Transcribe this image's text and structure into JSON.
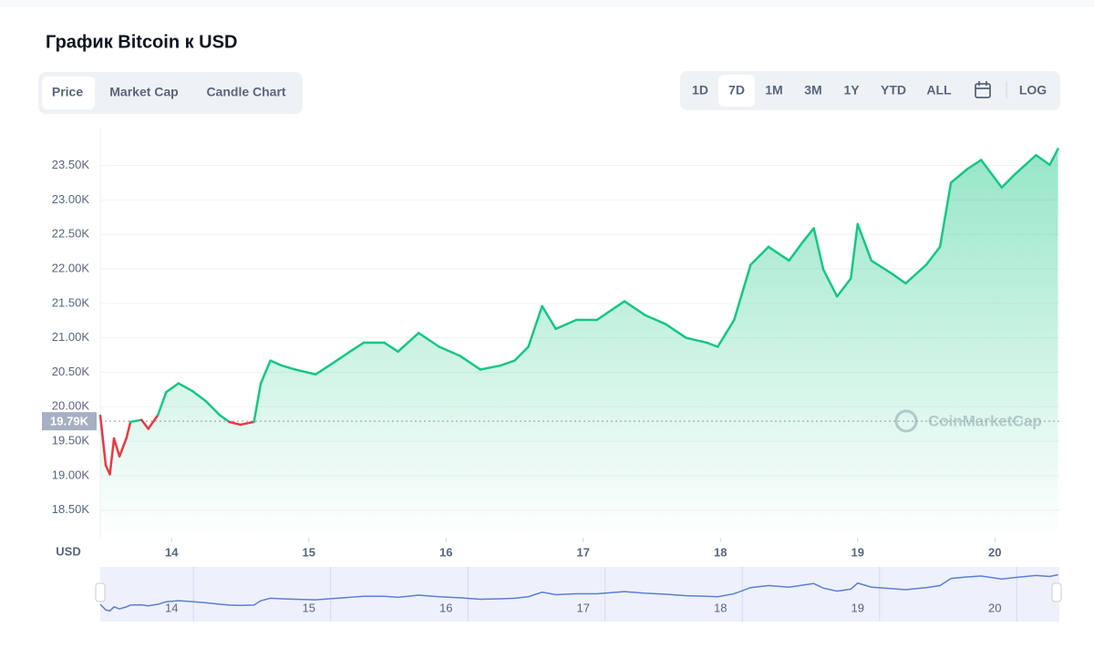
{
  "header": {
    "title": "График Bitcoin к USD"
  },
  "tabs": {
    "items": [
      "Price",
      "Market Cap",
      "Candle Chart"
    ],
    "active": 0
  },
  "ranges": {
    "items": [
      "1D",
      "7D",
      "1M",
      "3M",
      "1Y",
      "YTD",
      "ALL"
    ],
    "active": 1,
    "log": "LOG"
  },
  "chart_data": {
    "type": "line",
    "ylabel": "USD",
    "watermark": "CoinMarketCap",
    "x": [
      13.48,
      13.52,
      13.55,
      13.58,
      13.62,
      13.67,
      13.7,
      13.78,
      13.83,
      13.9,
      13.96,
      14.05,
      14.15,
      14.25,
      14.35,
      14.42,
      14.5,
      14.6,
      14.65,
      14.72,
      14.8,
      14.9,
      15.05,
      15.15,
      15.3,
      15.4,
      15.55,
      15.65,
      15.8,
      15.95,
      16.1,
      16.25,
      16.4,
      16.5,
      16.6,
      16.7,
      16.8,
      16.95,
      17.1,
      17.3,
      17.45,
      17.6,
      17.75,
      17.9,
      17.98,
      18.1,
      18.22,
      18.35,
      18.5,
      18.6,
      18.68,
      18.75,
      18.85,
      18.95,
      19.0,
      19.1,
      19.25,
      19.35,
      19.5,
      19.6,
      19.68,
      19.8,
      19.9,
      20.05,
      20.15,
      20.3,
      20.4,
      20.46
    ],
    "values": [
      19870,
      19150,
      19020,
      19540,
      19280,
      19540,
      19780,
      19810,
      19680,
      19880,
      20210,
      20340,
      20230,
      20080,
      19880,
      19780,
      19740,
      19780,
      20340,
      20670,
      20600,
      20540,
      20470,
      20600,
      20800,
      20930,
      20930,
      20800,
      21070,
      20870,
      20740,
      20540,
      20600,
      20670,
      20870,
      21460,
      21130,
      21260,
      21260,
      21530,
      21330,
      21200,
      21000,
      20930,
      20870,
      21260,
      22060,
      22320,
      22120,
      22390,
      22590,
      21990,
      21600,
      21860,
      22650,
      22120,
      21930,
      21790,
      22060,
      22320,
      23250,
      23450,
      23580,
      23180,
      23380,
      23650,
      23510,
      23740
    ],
    "color": "#16c784",
    "down_color": "#ea3943",
    "reference": {
      "value": 19790,
      "label": "19.79K"
    },
    "xlim": [
      13.48,
      20.47
    ],
    "xticks": [
      14,
      15,
      16,
      17,
      18,
      19,
      20
    ],
    "ylim": [
      18100,
      24050
    ],
    "yticks": [
      {
        "value": 18500,
        "label": "18.50K"
      },
      {
        "value": 19000,
        "label": "19.00K"
      },
      {
        "value": 19500,
        "label": "19.50K"
      },
      {
        "value": 20000,
        "label": "20.00K"
      },
      {
        "value": 20500,
        "label": "20.50K"
      },
      {
        "value": 21000,
        "label": "21.00K"
      },
      {
        "value": 21500,
        "label": "21.50K"
      },
      {
        "value": 22000,
        "label": "22.00K"
      },
      {
        "value": 22500,
        "label": "22.50K"
      },
      {
        "value": 23000,
        "label": "23.00K"
      },
      {
        "value": 23500,
        "label": "23.50K"
      }
    ],
    "grid": true
  }
}
